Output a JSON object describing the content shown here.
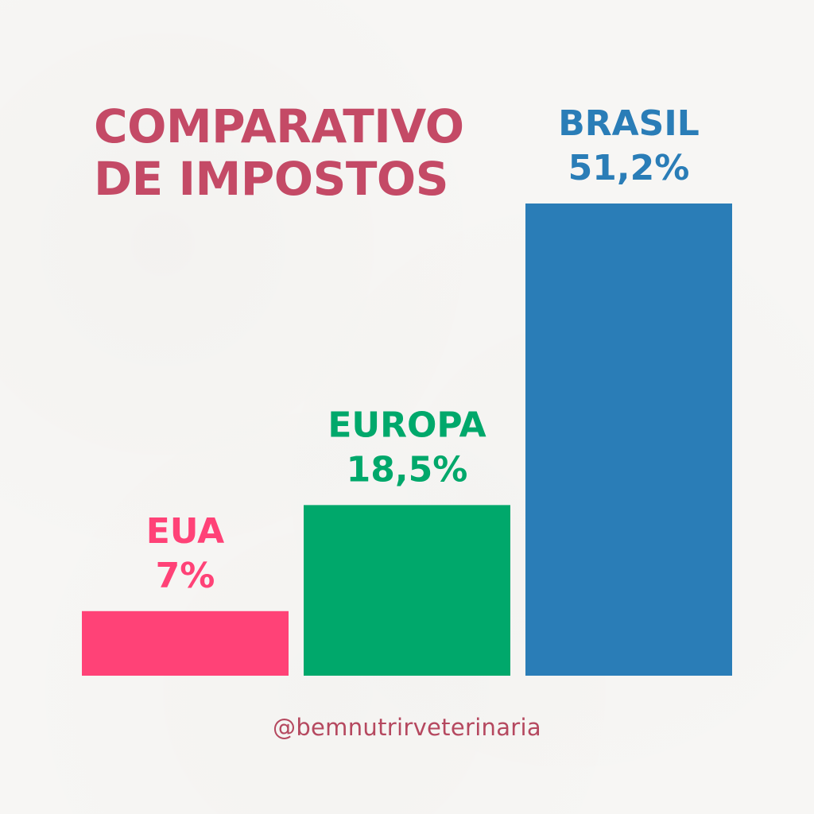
{
  "title_lines": [
    "COMPARATIVO",
    "DE IMPOSTOS"
  ],
  "handle": "@bemnutrirveterinaria",
  "colors": {
    "title": "#c44a66",
    "handle": "#b5485f",
    "background": "#f7f6f4"
  },
  "chart_data": {
    "type": "bar",
    "title": "COMPARATIVO DE IMPOSTOS",
    "xlabel": "",
    "ylabel": "",
    "grid": false,
    "ylim": [
      0,
      51.2
    ],
    "categories": [
      "EUA",
      "EUROPA",
      "BRASIL"
    ],
    "values": [
      7,
      18.5,
      51.2
    ],
    "value_labels": [
      "7%",
      "18,5%",
      "51,2%"
    ],
    "colors": [
      "#ff4277",
      "#00a86b",
      "#2a7db7"
    ]
  }
}
